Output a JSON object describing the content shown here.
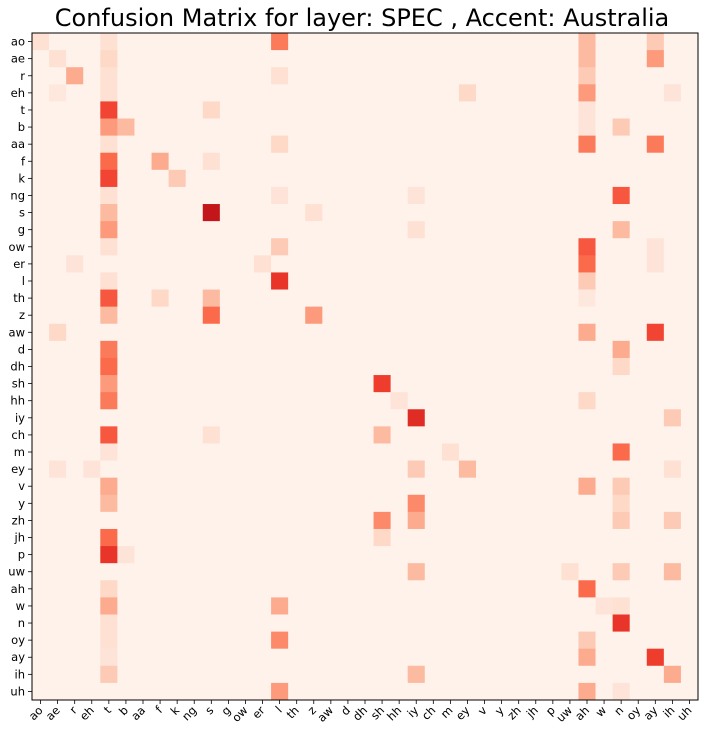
{
  "chart_data": {
    "type": "heatmap",
    "title": "Confusion Matrix for layer: SPEC , Accent: Australia",
    "xlabel": "",
    "ylabel": "",
    "labels": [
      "ao",
      "ae",
      "r",
      "eh",
      "t",
      "b",
      "aa",
      "f",
      "k",
      "ng",
      "s",
      "g",
      "ow",
      "er",
      "l",
      "th",
      "z",
      "aw",
      "d",
      "dh",
      "sh",
      "hh",
      "iy",
      "ch",
      "m",
      "ey",
      "v",
      "y",
      "zh",
      "jh",
      "p",
      "uw",
      "ah",
      "w",
      "n",
      "oy",
      "ay",
      "ih",
      "uh"
    ],
    "colormap": "Reds",
    "color_range": [
      0,
      1
    ],
    "grid": false,
    "cells": [
      {
        "row": "ao",
        "col": "ao",
        "value": 0.12
      },
      {
        "row": "ao",
        "col": "t",
        "value": 0.12
      },
      {
        "row": "ao",
        "col": "l",
        "value": 0.45
      },
      {
        "row": "ao",
        "col": "ah",
        "value": 0.25
      },
      {
        "row": "ao",
        "col": "ay",
        "value": 0.2
      },
      {
        "row": "ae",
        "col": "ae",
        "value": 0.12
      },
      {
        "row": "ae",
        "col": "t",
        "value": 0.15
      },
      {
        "row": "ae",
        "col": "ah",
        "value": 0.25
      },
      {
        "row": "ae",
        "col": "ay",
        "value": 0.35
      },
      {
        "row": "r",
        "col": "r",
        "value": 0.3
      },
      {
        "row": "r",
        "col": "t",
        "value": 0.12
      },
      {
        "row": "r",
        "col": "l",
        "value": 0.12
      },
      {
        "row": "r",
        "col": "ah",
        "value": 0.2
      },
      {
        "row": "eh",
        "col": "ae",
        "value": 0.08
      },
      {
        "row": "eh",
        "col": "t",
        "value": 0.12
      },
      {
        "row": "eh",
        "col": "ey",
        "value": 0.15
      },
      {
        "row": "eh",
        "col": "ah",
        "value": 0.35
      },
      {
        "row": "eh",
        "col": "ih",
        "value": 0.1
      },
      {
        "row": "t",
        "col": "t",
        "value": 0.6
      },
      {
        "row": "t",
        "col": "s",
        "value": 0.15
      },
      {
        "row": "t",
        "col": "ah",
        "value": 0.1
      },
      {
        "row": "b",
        "col": "t",
        "value": 0.35
      },
      {
        "row": "b",
        "col": "b",
        "value": 0.25
      },
      {
        "row": "b",
        "col": "n",
        "value": 0.2
      },
      {
        "row": "b",
        "col": "ah",
        "value": 0.1
      },
      {
        "row": "aa",
        "col": "t",
        "value": 0.12
      },
      {
        "row": "aa",
        "col": "l",
        "value": 0.15
      },
      {
        "row": "aa",
        "col": "ah",
        "value": 0.45
      },
      {
        "row": "aa",
        "col": "ay",
        "value": 0.45
      },
      {
        "row": "f",
        "col": "t",
        "value": 0.5
      },
      {
        "row": "f",
        "col": "f",
        "value": 0.3
      },
      {
        "row": "f",
        "col": "s",
        "value": 0.12
      },
      {
        "row": "k",
        "col": "t",
        "value": 0.6
      },
      {
        "row": "k",
        "col": "k",
        "value": 0.2
      },
      {
        "row": "ng",
        "col": "t",
        "value": 0.12
      },
      {
        "row": "ng",
        "col": "l",
        "value": 0.1
      },
      {
        "row": "ng",
        "col": "iy",
        "value": 0.1
      },
      {
        "row": "ng",
        "col": "n",
        "value": 0.55
      },
      {
        "row": "s",
        "col": "t",
        "value": 0.25
      },
      {
        "row": "s",
        "col": "s",
        "value": 0.78
      },
      {
        "row": "s",
        "col": "z",
        "value": 0.12
      },
      {
        "row": "g",
        "col": "t",
        "value": 0.35
      },
      {
        "row": "g",
        "col": "iy",
        "value": 0.12
      },
      {
        "row": "g",
        "col": "n",
        "value": 0.25
      },
      {
        "row": "ow",
        "col": "t",
        "value": 0.12
      },
      {
        "row": "ow",
        "col": "l",
        "value": 0.2
      },
      {
        "row": "ow",
        "col": "ah",
        "value": 0.55
      },
      {
        "row": "ow",
        "col": "ay",
        "value": 0.1
      },
      {
        "row": "er",
        "col": "r",
        "value": 0.1
      },
      {
        "row": "er",
        "col": "er",
        "value": 0.12
      },
      {
        "row": "er",
        "col": "ah",
        "value": 0.5
      },
      {
        "row": "er",
        "col": "ay",
        "value": 0.1
      },
      {
        "row": "l",
        "col": "t",
        "value": 0.12
      },
      {
        "row": "l",
        "col": "l",
        "value": 0.65
      },
      {
        "row": "l",
        "col": "ah",
        "value": 0.2
      },
      {
        "row": "th",
        "col": "t",
        "value": 0.55
      },
      {
        "row": "th",
        "col": "f",
        "value": 0.15
      },
      {
        "row": "th",
        "col": "s",
        "value": 0.25
      },
      {
        "row": "th",
        "col": "ah",
        "value": 0.08
      },
      {
        "row": "z",
        "col": "t",
        "value": 0.25
      },
      {
        "row": "z",
        "col": "s",
        "value": 0.5
      },
      {
        "row": "z",
        "col": "z",
        "value": 0.35
      },
      {
        "row": "aw",
        "col": "ae",
        "value": 0.15
      },
      {
        "row": "aw",
        "col": "ah",
        "value": 0.3
      },
      {
        "row": "aw",
        "col": "ay",
        "value": 0.6
      },
      {
        "row": "d",
        "col": "t",
        "value": 0.45
      },
      {
        "row": "d",
        "col": "n",
        "value": 0.3
      },
      {
        "row": "dh",
        "col": "t",
        "value": 0.5
      },
      {
        "row": "dh",
        "col": "n",
        "value": 0.15
      },
      {
        "row": "sh",
        "col": "t",
        "value": 0.35
      },
      {
        "row": "sh",
        "col": "sh",
        "value": 0.62
      },
      {
        "row": "hh",
        "col": "t",
        "value": 0.45
      },
      {
        "row": "hh",
        "col": "hh",
        "value": 0.1
      },
      {
        "row": "hh",
        "col": "ah",
        "value": 0.15
      },
      {
        "row": "iy",
        "col": "iy",
        "value": 0.68
      },
      {
        "row": "iy",
        "col": "ih",
        "value": 0.2
      },
      {
        "row": "ch",
        "col": "t",
        "value": 0.55
      },
      {
        "row": "ch",
        "col": "s",
        "value": 0.12
      },
      {
        "row": "ch",
        "col": "sh",
        "value": 0.25
      },
      {
        "row": "m",
        "col": "t",
        "value": 0.1
      },
      {
        "row": "m",
        "col": "m",
        "value": 0.12
      },
      {
        "row": "m",
        "col": "n",
        "value": 0.5
      },
      {
        "row": "ey",
        "col": "ae",
        "value": 0.1
      },
      {
        "row": "ey",
        "col": "eh",
        "value": 0.1
      },
      {
        "row": "ey",
        "col": "iy",
        "value": 0.2
      },
      {
        "row": "ey",
        "col": "ey",
        "value": 0.25
      },
      {
        "row": "ey",
        "col": "ih",
        "value": 0.12
      },
      {
        "row": "v",
        "col": "t",
        "value": 0.3
      },
      {
        "row": "v",
        "col": "ah",
        "value": 0.3
      },
      {
        "row": "v",
        "col": "n",
        "value": 0.2
      },
      {
        "row": "y",
        "col": "t",
        "value": 0.25
      },
      {
        "row": "y",
        "col": "iy",
        "value": 0.4
      },
      {
        "row": "y",
        "col": "n",
        "value": 0.15
      },
      {
        "row": "zh",
        "col": "sh",
        "value": 0.4
      },
      {
        "row": "zh",
        "col": "iy",
        "value": 0.3
      },
      {
        "row": "zh",
        "col": "n",
        "value": 0.2
      },
      {
        "row": "zh",
        "col": "ih",
        "value": 0.2
      },
      {
        "row": "jh",
        "col": "t",
        "value": 0.5
      },
      {
        "row": "jh",
        "col": "sh",
        "value": 0.15
      },
      {
        "row": "p",
        "col": "t",
        "value": 0.65
      },
      {
        "row": "p",
        "col": "b",
        "value": 0.1
      },
      {
        "row": "uw",
        "col": "iy",
        "value": 0.25
      },
      {
        "row": "uw",
        "col": "uw",
        "value": 0.12
      },
      {
        "row": "uw",
        "col": "n",
        "value": 0.2
      },
      {
        "row": "uw",
        "col": "ih",
        "value": 0.25
      },
      {
        "row": "ah",
        "col": "t",
        "value": 0.15
      },
      {
        "row": "ah",
        "col": "ah",
        "value": 0.5
      },
      {
        "row": "w",
        "col": "t",
        "value": 0.3
      },
      {
        "row": "w",
        "col": "l",
        "value": 0.3
      },
      {
        "row": "w",
        "col": "w",
        "value": 0.1
      },
      {
        "row": "w",
        "col": "n",
        "value": 0.12
      },
      {
        "row": "n",
        "col": "t",
        "value": 0.12
      },
      {
        "row": "n",
        "col": "n",
        "value": 0.65
      },
      {
        "row": "oy",
        "col": "t",
        "value": 0.12
      },
      {
        "row": "oy",
        "col": "l",
        "value": 0.4
      },
      {
        "row": "oy",
        "col": "ah",
        "value": 0.2
      },
      {
        "row": "ay",
        "col": "t",
        "value": 0.1
      },
      {
        "row": "ay",
        "col": "ah",
        "value": 0.3
      },
      {
        "row": "ay",
        "col": "ay",
        "value": 0.62
      },
      {
        "row": "ih",
        "col": "t",
        "value": 0.2
      },
      {
        "row": "ih",
        "col": "iy",
        "value": 0.25
      },
      {
        "row": "ih",
        "col": "ih",
        "value": 0.3
      },
      {
        "row": "uh",
        "col": "l",
        "value": 0.35
      },
      {
        "row": "uh",
        "col": "ah",
        "value": 0.3
      },
      {
        "row": "uh",
        "col": "n",
        "value": 0.1
      }
    ]
  }
}
